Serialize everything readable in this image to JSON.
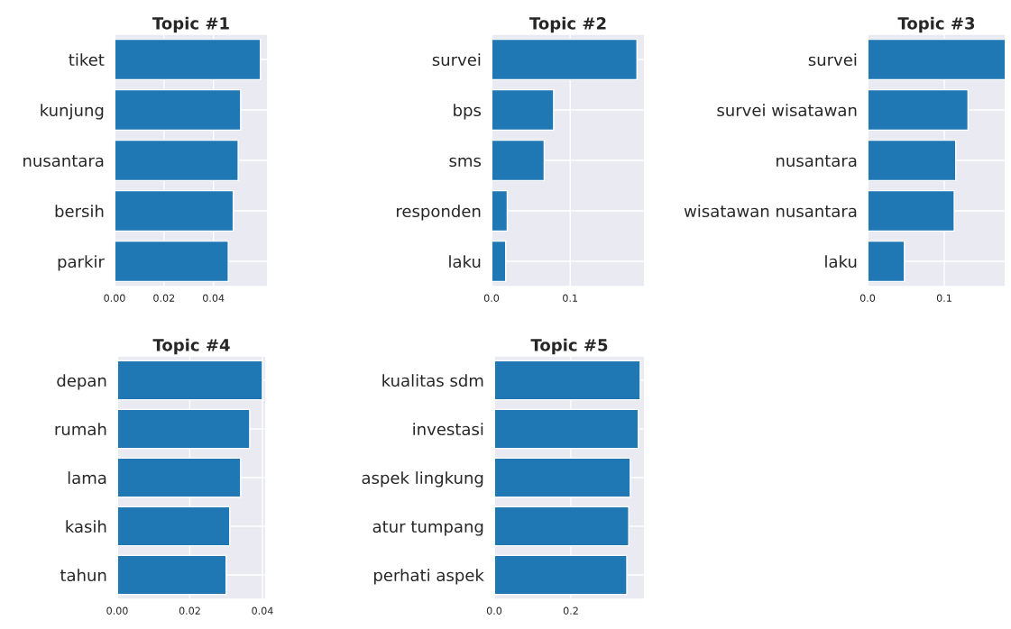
{
  "chart_data": [
    {
      "type": "bar",
      "title": "Topic #1",
      "orientation": "horizontal",
      "grid": true,
      "color": "#1f77b4",
      "categories": [
        "tiket",
        "kunjung",
        "nusantara",
        "bersih",
        "parkir"
      ],
      "values": [
        0.059,
        0.051,
        0.05,
        0.048,
        0.046
      ],
      "xlim": [
        0,
        0.062
      ],
      "xticks": [
        {
          "value": 0,
          "label": "0.00"
        },
        {
          "value": 0.02,
          "label": "0.02"
        },
        {
          "value": 0.04,
          "label": "0.04"
        }
      ]
    },
    {
      "type": "bar",
      "title": "Topic #2",
      "orientation": "horizontal",
      "grid": true,
      "color": "#1f77b4",
      "categories": [
        "survei",
        "bps",
        "sms",
        "responden",
        "laku"
      ],
      "values": [
        0.185,
        0.079,
        0.067,
        0.02,
        0.018
      ],
      "xlim": [
        0,
        0.195
      ],
      "xticks": [
        {
          "value": 0,
          "label": "0.0"
        },
        {
          "value": 0.1,
          "label": "0.1"
        }
      ]
    },
    {
      "type": "bar",
      "title": "Topic #3",
      "orientation": "horizontal",
      "grid": true,
      "color": "#1f77b4",
      "categories": [
        "survei",
        "survei wisatawan",
        "nusantara",
        "wisatawan nusantara",
        "laku"
      ],
      "values": [
        0.18,
        0.131,
        0.115,
        0.113,
        0.048
      ],
      "xlim": [
        0,
        0.18
      ],
      "xticks": [
        {
          "value": 0,
          "label": "0.0"
        },
        {
          "value": 0.1,
          "label": "0.1"
        }
      ]
    },
    {
      "type": "bar",
      "title": "Topic #4",
      "orientation": "horizontal",
      "grid": true,
      "color": "#1f77b4",
      "categories": [
        "depan",
        "rumah",
        "lama",
        "kasih",
        "tahun"
      ],
      "values": [
        0.04,
        0.0365,
        0.034,
        0.031,
        0.03
      ],
      "xlim": [
        0,
        0.041
      ],
      "xticks": [
        {
          "value": 0,
          "label": "0.00"
        },
        {
          "value": 0.02,
          "label": "0.02"
        },
        {
          "value": 0.04,
          "label": "0.04"
        }
      ]
    },
    {
      "type": "bar",
      "title": "Topic #5",
      "orientation": "horizontal",
      "grid": true,
      "color": "#1f77b4",
      "categories": [
        "kualitas sdm",
        "investasi",
        "aspek lingkung",
        "atur tumpang",
        "perhati aspek"
      ],
      "values": [
        0.381,
        0.376,
        0.355,
        0.351,
        0.346
      ],
      "xlim": [
        0,
        0.393
      ],
      "xticks": [
        {
          "value": 0,
          "label": "0.0"
        },
        {
          "value": 0.2,
          "label": "0.2"
        }
      ]
    }
  ]
}
